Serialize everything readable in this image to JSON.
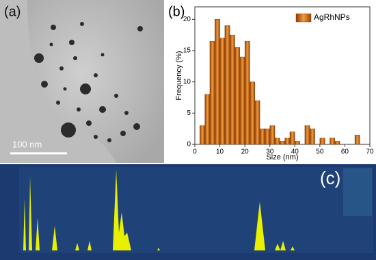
{
  "panel_a": {
    "label": "(a)",
    "scale_bar": "100 nm"
  },
  "chart_data": {
    "type": "histogram",
    "label": "(b)",
    "xlabel": "Size (nm)",
    "ylabel": "Frequency (%)",
    "bins": [
      2,
      4,
      6,
      8,
      10,
      12,
      14,
      16,
      18,
      20,
      22,
      24,
      26,
      28,
      30,
      32,
      34,
      36,
      38,
      40,
      42,
      44,
      46,
      48,
      50,
      52,
      54,
      56,
      58,
      60,
      62,
      64,
      66
    ],
    "series": [
      {
        "name": "AgRhNPs",
        "color": "#d9701a",
        "values": [
          3,
          8,
          16.5,
          20,
          17,
          19,
          17.5,
          15.5,
          14,
          16.5,
          10,
          7,
          2.5,
          2.5,
          3,
          1,
          0.5,
          1,
          2,
          0.5,
          0,
          3,
          2.5,
          0,
          1,
          0,
          1,
          0.5,
          0,
          0,
          0,
          1.5
        ]
      }
    ],
    "xlim": [
      0,
      70
    ],
    "xticks": [
      0,
      10,
      20,
      30,
      40,
      50,
      60,
      70
    ],
    "ylim": [
      0,
      22
    ],
    "yticks": [
      0,
      5,
      10,
      15,
      20
    ],
    "legend": "upper right"
  },
  "panel_c": {
    "label": "(c)"
  }
}
